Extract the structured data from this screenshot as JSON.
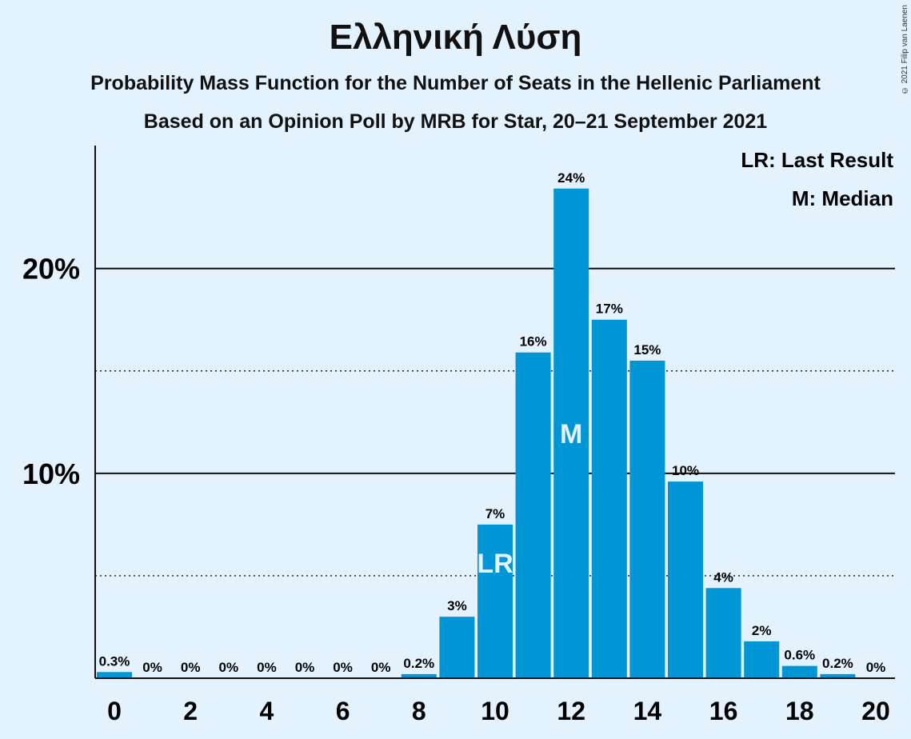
{
  "chart_data": {
    "type": "bar",
    "title": "Ελληνική Λύση",
    "subtitle": [
      "Probability Mass Function for the Number of Seats in the Hellenic Parliament",
      "Based on an Opinion Poll by MRB for Star, 20–21 September 2021"
    ],
    "copyright": "© 2021 Filip van Laenen",
    "x": [
      0,
      1,
      2,
      3,
      4,
      5,
      6,
      7,
      8,
      9,
      10,
      11,
      12,
      13,
      14,
      15,
      16,
      17,
      18,
      19,
      20
    ],
    "values": [
      0.3,
      0,
      0,
      0,
      0,
      0,
      0,
      0,
      0.2,
      3,
      7.5,
      15.9,
      23.9,
      17.5,
      15.5,
      9.6,
      4.4,
      1.8,
      0.6,
      0.2,
      0
    ],
    "data_labels": [
      "0.3%",
      "0%",
      "0%",
      "0%",
      "0%",
      "0%",
      "0%",
      "0%",
      "0.2%",
      "3%",
      "7%",
      "16%",
      "24%",
      "17%",
      "15%",
      "10%",
      "4%",
      "2%",
      "0.6%",
      "0.2%",
      "0%"
    ],
    "x_tick_labels": [
      "0",
      "2",
      "4",
      "6",
      "8",
      "10",
      "12",
      "14",
      "16",
      "18",
      "20"
    ],
    "y_tick_labels": [
      "10%",
      "20%"
    ],
    "ylim": [
      0,
      26
    ],
    "solid_gridlines": [
      10,
      20
    ],
    "dotted_gridlines": [
      5,
      15
    ],
    "bar_color": "#0096d6",
    "background_color": "#e3f2fd",
    "last_result": {
      "seats": 10,
      "label": "LR"
    },
    "median": {
      "seats": 12,
      "label": "M"
    },
    "legend": [
      "LR: Last Result",
      "M: Median"
    ],
    "legend_position": "top-right"
  }
}
